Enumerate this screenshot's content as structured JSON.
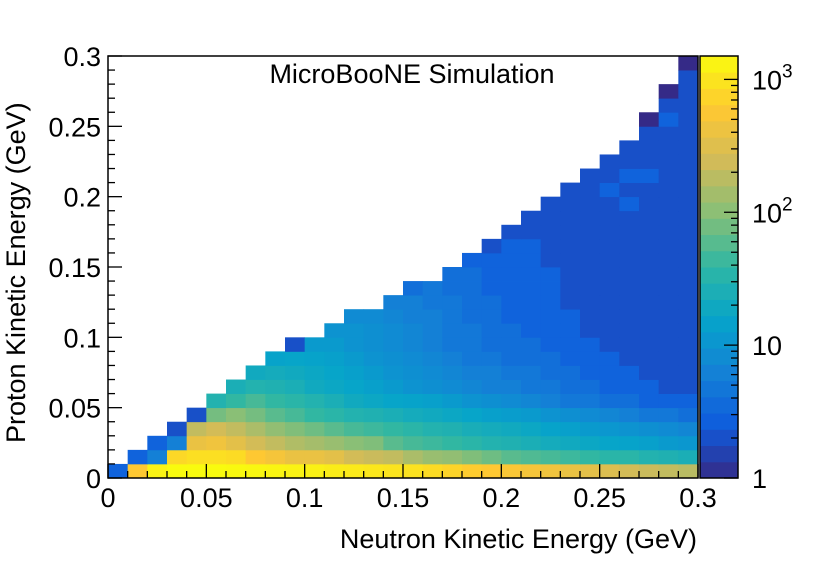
{
  "chart_data": {
    "type": "heatmap",
    "title": "MicroBooNE Simulation",
    "xlabel": "Neutron Kinetic Energy (GeV)",
    "ylabel": "Proton Kinetic Energy (GeV)",
    "xlim": [
      0,
      0.3
    ],
    "ylim": [
      0,
      0.3
    ],
    "x_tick_labels": [
      "0",
      "0.05",
      "0.1",
      "0.15",
      "0.2",
      "0.25",
      "0.3"
    ],
    "y_tick_labels": [
      "0",
      "0.05",
      "0.1",
      "0.15",
      "0.2",
      "0.25",
      "0.3"
    ],
    "bins_x": 30,
    "bins_y": 30,
    "bin_width": 0.01,
    "z_scale": "log",
    "zlim": [
      1,
      1500
    ],
    "colorbar_labels": [
      "1",
      "10",
      "10^2",
      "10^3"
    ],
    "colorbar_tick_values": [
      1,
      10,
      100,
      1000
    ],
    "note": "counts are per bin, filled only where proton KE < neutron KE; rows listed from proton KE bin 0 upward, each row starting at neutron KE bin 0",
    "rows": [
      [
        3,
        600,
        1300,
        1500,
        1500,
        1500,
        1450,
        1400,
        1350,
        1300,
        1250,
        1150,
        1100,
        1050,
        1000,
        950,
        850,
        750,
        650,
        600,
        550,
        500,
        450,
        400,
        350,
        300,
        250,
        220,
        200,
        180
      ],
      [
        null,
        3,
        6,
        800,
        900,
        900,
        850,
        600,
        500,
        400,
        400,
        350,
        250,
        220,
        200,
        150,
        120,
        110,
        90,
        75,
        60,
        55,
        50,
        45,
        40,
        35,
        35,
        30,
        28,
        25
      ],
      [
        null,
        null,
        3,
        6,
        400,
        450,
        350,
        250,
        200,
        160,
        140,
        120,
        100,
        90,
        60,
        50,
        45,
        40,
        35,
        30,
        28,
        25,
        22,
        20,
        18,
        16,
        15,
        14,
        12,
        11
      ],
      [
        null,
        null,
        null,
        2,
        200,
        250,
        200,
        150,
        110,
        90,
        75,
        60,
        50,
        45,
        40,
        35,
        30,
        28,
        24,
        22,
        20,
        18,
        15,
        14,
        12,
        11,
        10,
        9,
        8,
        7
      ],
      [
        null,
        null,
        null,
        null,
        2,
        80,
        100,
        80,
        60,
        50,
        40,
        35,
        30,
        28,
        25,
        22,
        20,
        18,
        16,
        14,
        13,
        12,
        10,
        9,
        8,
        7,
        6,
        5,
        5,
        4
      ],
      [
        null,
        null,
        null,
        null,
        null,
        30,
        40,
        50,
        40,
        35,
        30,
        25,
        20,
        18,
        16,
        15,
        14,
        12,
        10,
        9,
        8,
        7,
        6,
        5,
        5,
        4,
        4,
        3,
        3,
        3
      ],
      [
        null,
        null,
        null,
        null,
        null,
        null,
        25,
        30,
        28,
        25,
        20,
        18,
        16,
        14,
        12,
        10,
        9,
        8,
        7,
        6,
        6,
        5,
        5,
        4,
        4,
        3,
        3,
        3,
        2,
        2
      ],
      [
        null,
        null,
        null,
        null,
        null,
        null,
        null,
        20,
        22,
        20,
        18,
        16,
        14,
        12,
        10,
        9,
        8,
        7,
        6,
        6,
        5,
        5,
        4,
        4,
        3,
        3,
        3,
        2,
        2,
        2
      ],
      [
        null,
        null,
        null,
        null,
        null,
        null,
        null,
        null,
        15,
        16,
        15,
        14,
        12,
        10,
        9,
        8,
        7,
        6,
        5,
        5,
        4,
        4,
        4,
        3,
        3,
        3,
        2,
        2,
        2,
        2
      ],
      [
        null,
        null,
        null,
        null,
        null,
        null,
        null,
        null,
        null,
        2,
        12,
        12,
        10,
        9,
        8,
        7,
        6,
        5,
        5,
        4,
        4,
        4,
        3,
        3,
        3,
        2,
        2,
        2,
        2,
        2
      ],
      [
        null,
        null,
        null,
        null,
        null,
        null,
        null,
        null,
        null,
        null,
        null,
        10,
        10,
        9,
        8,
        7,
        6,
        5,
        5,
        4,
        4,
        3,
        3,
        3,
        2,
        2,
        2,
        2,
        2,
        2
      ],
      [
        null,
        null,
        null,
        null,
        null,
        null,
        null,
        null,
        null,
        null,
        null,
        null,
        8,
        8,
        7,
        6,
        6,
        5,
        4,
        4,
        3,
        3,
        3,
        3,
        2,
        2,
        2,
        2,
        2,
        2
      ],
      [
        null,
        null,
        null,
        null,
        null,
        null,
        null,
        null,
        null,
        null,
        null,
        null,
        null,
        null,
        6,
        6,
        5,
        5,
        4,
        4,
        3,
        3,
        3,
        2,
        2,
        2,
        2,
        2,
        2,
        2
      ],
      [
        null,
        null,
        null,
        null,
        null,
        null,
        null,
        null,
        null,
        null,
        null,
        null,
        null,
        null,
        null,
        4,
        5,
        4,
        4,
        3,
        3,
        3,
        3,
        2,
        2,
        2,
        2,
        2,
        2,
        2
      ],
      [
        null,
        null,
        null,
        null,
        null,
        null,
        null,
        null,
        null,
        null,
        null,
        null,
        null,
        null,
        null,
        null,
        null,
        4,
        4,
        3,
        3,
        3,
        3,
        2,
        2,
        2,
        2,
        2,
        2,
        2
      ],
      [
        null,
        null,
        null,
        null,
        null,
        null,
        null,
        null,
        null,
        null,
        null,
        null,
        null,
        null,
        null,
        null,
        null,
        null,
        3,
        3,
        3,
        3,
        2,
        2,
        2,
        2,
        2,
        2,
        2,
        2
      ],
      [
        null,
        null,
        null,
        null,
        null,
        null,
        null,
        null,
        null,
        null,
        null,
        null,
        null,
        null,
        null,
        null,
        null,
        null,
        null,
        2,
        3,
        3,
        2,
        2,
        2,
        2,
        2,
        2,
        2,
        2
      ],
      [
        null,
        null,
        null,
        null,
        null,
        null,
        null,
        null,
        null,
        null,
        null,
        null,
        null,
        null,
        null,
        null,
        null,
        null,
        null,
        null,
        2,
        2,
        2,
        2,
        2,
        2,
        2,
        2,
        2,
        2
      ],
      [
        null,
        null,
        null,
        null,
        null,
        null,
        null,
        null,
        null,
        null,
        null,
        null,
        null,
        null,
        null,
        null,
        null,
        null,
        null,
        null,
        null,
        2,
        2,
        2,
        2,
        2,
        2,
        2,
        2,
        2
      ],
      [
        null,
        null,
        null,
        null,
        null,
        null,
        null,
        null,
        null,
        null,
        null,
        null,
        null,
        null,
        null,
        null,
        null,
        null,
        null,
        null,
        null,
        null,
        2,
        2,
        2,
        2,
        3,
        2,
        2,
        2
      ],
      [
        null,
        null,
        null,
        null,
        null,
        null,
        null,
        null,
        null,
        null,
        null,
        null,
        null,
        null,
        null,
        null,
        null,
        null,
        null,
        null,
        null,
        null,
        null,
        2,
        2,
        3,
        2,
        2,
        2,
        2
      ],
      [
        null,
        null,
        null,
        null,
        null,
        null,
        null,
        null,
        null,
        null,
        null,
        null,
        null,
        null,
        null,
        null,
        null,
        null,
        null,
        null,
        null,
        null,
        null,
        null,
        2,
        2,
        3,
        3,
        2,
        2
      ],
      [
        null,
        null,
        null,
        null,
        null,
        null,
        null,
        null,
        null,
        null,
        null,
        null,
        null,
        null,
        null,
        null,
        null,
        null,
        null,
        null,
        null,
        null,
        null,
        null,
        null,
        2,
        2,
        2,
        2,
        2
      ],
      [
        null,
        null,
        null,
        null,
        null,
        null,
        null,
        null,
        null,
        null,
        null,
        null,
        null,
        null,
        null,
        null,
        null,
        null,
        null,
        null,
        null,
        null,
        null,
        null,
        null,
        null,
        2,
        2,
        2,
        2
      ],
      [
        null,
        null,
        null,
        null,
        null,
        null,
        null,
        null,
        null,
        null,
        null,
        null,
        null,
        null,
        null,
        null,
        null,
        null,
        null,
        null,
        null,
        null,
        null,
        null,
        null,
        null,
        null,
        2,
        2,
        2
      ],
      [
        null,
        null,
        null,
        null,
        null,
        null,
        null,
        null,
        null,
        null,
        null,
        null,
        null,
        null,
        null,
        null,
        null,
        null,
        null,
        null,
        null,
        null,
        null,
        null,
        null,
        null,
        null,
        1,
        3,
        2
      ],
      [
        null,
        null,
        null,
        null,
        null,
        null,
        null,
        null,
        null,
        null,
        null,
        null,
        null,
        null,
        null,
        null,
        null,
        null,
        null,
        null,
        null,
        null,
        null,
        null,
        null,
        null,
        null,
        null,
        2,
        2
      ],
      [
        null,
        null,
        null,
        null,
        null,
        null,
        null,
        null,
        null,
        null,
        null,
        null,
        null,
        null,
        null,
        null,
        null,
        null,
        null,
        null,
        null,
        null,
        null,
        null,
        null,
        null,
        null,
        null,
        1,
        2
      ],
      [
        null,
        null,
        null,
        null,
        null,
        null,
        null,
        null,
        null,
        null,
        null,
        null,
        null,
        null,
        null,
        null,
        null,
        null,
        null,
        null,
        null,
        null,
        null,
        null,
        null,
        null,
        null,
        null,
        null,
        2
      ],
      [
        null,
        null,
        null,
        null,
        null,
        null,
        null,
        null,
        null,
        null,
        null,
        null,
        null,
        null,
        null,
        null,
        null,
        null,
        null,
        null,
        null,
        null,
        null,
        null,
        null,
        null,
        null,
        null,
        null,
        1
      ]
    ]
  }
}
